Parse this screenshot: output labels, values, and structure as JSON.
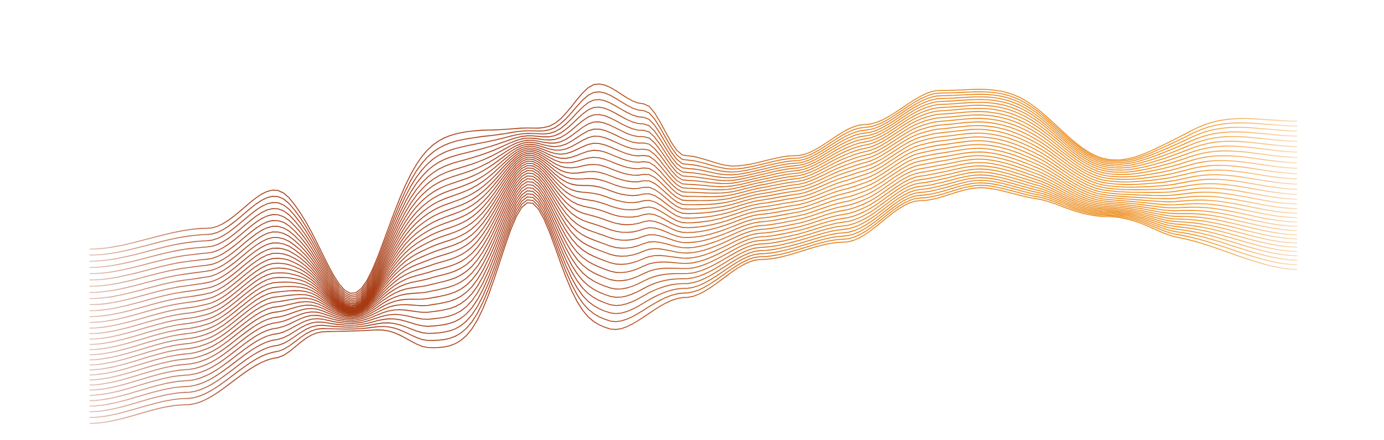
{
  "artwork": {
    "kind": "abstract-wave-line-art",
    "background_color": "#ffffff",
    "gradient_start_color": "#a63a12",
    "gradient_end_color": "#ee8a12",
    "line_count": 32
  }
}
